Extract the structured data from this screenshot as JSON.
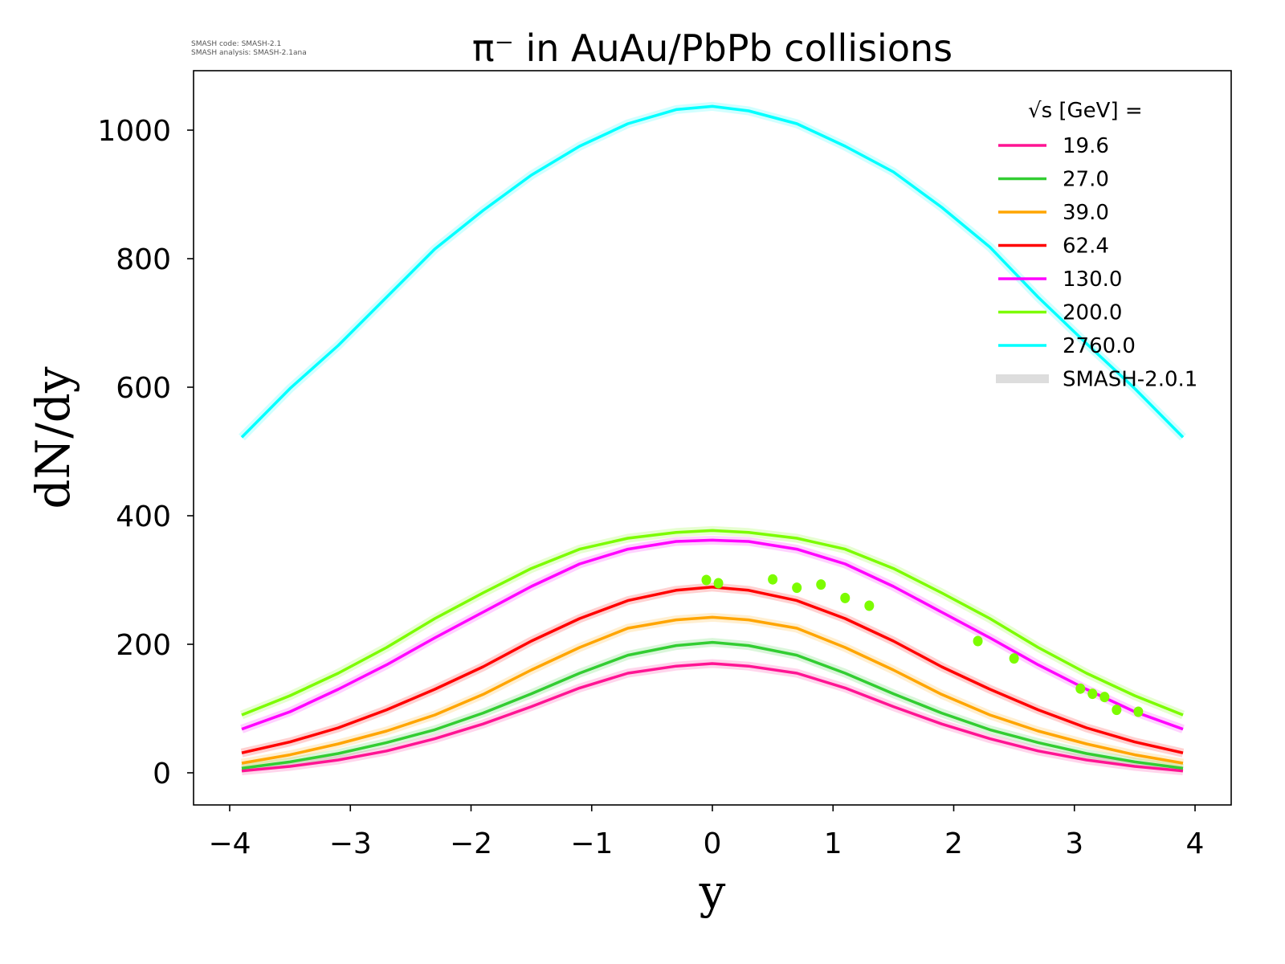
{
  "chart_data": {
    "type": "line",
    "title": "π⁻ in AuAu/PbPb collisions",
    "xlabel": "y",
    "ylabel": "dN/dy",
    "xlim": [
      -4.3,
      4.3
    ],
    "ylim": [
      -50,
      1092
    ],
    "xticks": [
      -4,
      -3,
      -2,
      -1,
      0,
      1,
      2,
      3,
      4
    ],
    "xtick_labels": [
      "−4",
      "−3",
      "−2",
      "−1",
      "0",
      "1",
      "2",
      "3",
      "4"
    ],
    "yticks": [
      0,
      200,
      400,
      600,
      800,
      1000
    ],
    "ytick_labels": [
      "0",
      "200",
      "400",
      "600",
      "800",
      "1000"
    ],
    "grid": false,
    "legend_position": "top-right",
    "legend_title": "√s  [GeV] =",
    "legend_band_label": "SMASH-2.0.1",
    "annotation": [
      "SMASH code:      SMASH-2.1",
      "SMASH analysis: SMASH-2.1ana"
    ],
    "x": [
      -3.9,
      -3.5,
      -3.1,
      -2.7,
      -2.3,
      -1.9,
      -1.5,
      -1.1,
      -0.7,
      -0.3,
      0,
      0.3,
      0.7,
      1.1,
      1.5,
      1.9,
      2.3,
      2.7,
      3.1,
      3.5,
      3.9
    ],
    "series": [
      {
        "name": "19.6",
        "color": "#ff1493",
        "values": [
          3,
          10,
          20,
          34,
          53,
          76,
          103,
          132,
          155,
          166,
          170,
          166,
          155,
          132,
          103,
          76,
          53,
          34,
          20,
          10,
          3
        ]
      },
      {
        "name": "27.0",
        "color": "#32cd32",
        "values": [
          7,
          17,
          30,
          47,
          67,
          93,
          123,
          155,
          183,
          198,
          203,
          198,
          183,
          155,
          123,
          93,
          67,
          47,
          30,
          17,
          7
        ]
      },
      {
        "name": "39.0",
        "color": "#ffa500",
        "values": [
          15,
          28,
          45,
          65,
          90,
          122,
          160,
          195,
          225,
          238,
          242,
          238,
          225,
          195,
          160,
          122,
          90,
          65,
          45,
          28,
          15
        ]
      },
      {
        "name": "62.4",
        "color": "#ff0000",
        "values": [
          31,
          48,
          70,
          98,
          130,
          165,
          205,
          240,
          268,
          284,
          289,
          284,
          268,
          240,
          205,
          165,
          130,
          98,
          70,
          48,
          31
        ]
      },
      {
        "name": "130.0",
        "color": "#ff00ff",
        "values": [
          68,
          95,
          130,
          168,
          210,
          250,
          290,
          325,
          348,
          360,
          362,
          360,
          348,
          325,
          290,
          250,
          210,
          168,
          130,
          95,
          68
        ]
      },
      {
        "name": "200.0",
        "color": "#7cfc00",
        "values": [
          90,
          120,
          155,
          195,
          240,
          280,
          318,
          348,
          365,
          374,
          377,
          374,
          365,
          348,
          318,
          280,
          240,
          195,
          155,
          120,
          90
        ]
      },
      {
        "name": "2760.0",
        "color": "#00ffff",
        "values": [
          522,
          598,
          665,
          740,
          815,
          875,
          930,
          975,
          1010,
          1032,
          1037,
          1030,
          1010,
          975,
          935,
          880,
          818,
          740,
          668,
          598,
          522
        ]
      }
    ],
    "points": {
      "color": "#7cfc00",
      "x": [
        -0.05,
        0.05,
        0.5,
        0.7,
        0.9,
        1.1,
        1.3,
        2.2,
        2.5,
        3.05,
        3.15,
        3.25,
        3.35,
        3.53
      ],
      "y": [
        300,
        295,
        301,
        288,
        293,
        272,
        260,
        205,
        178,
        131,
        123,
        118,
        98,
        95
      ]
    }
  }
}
